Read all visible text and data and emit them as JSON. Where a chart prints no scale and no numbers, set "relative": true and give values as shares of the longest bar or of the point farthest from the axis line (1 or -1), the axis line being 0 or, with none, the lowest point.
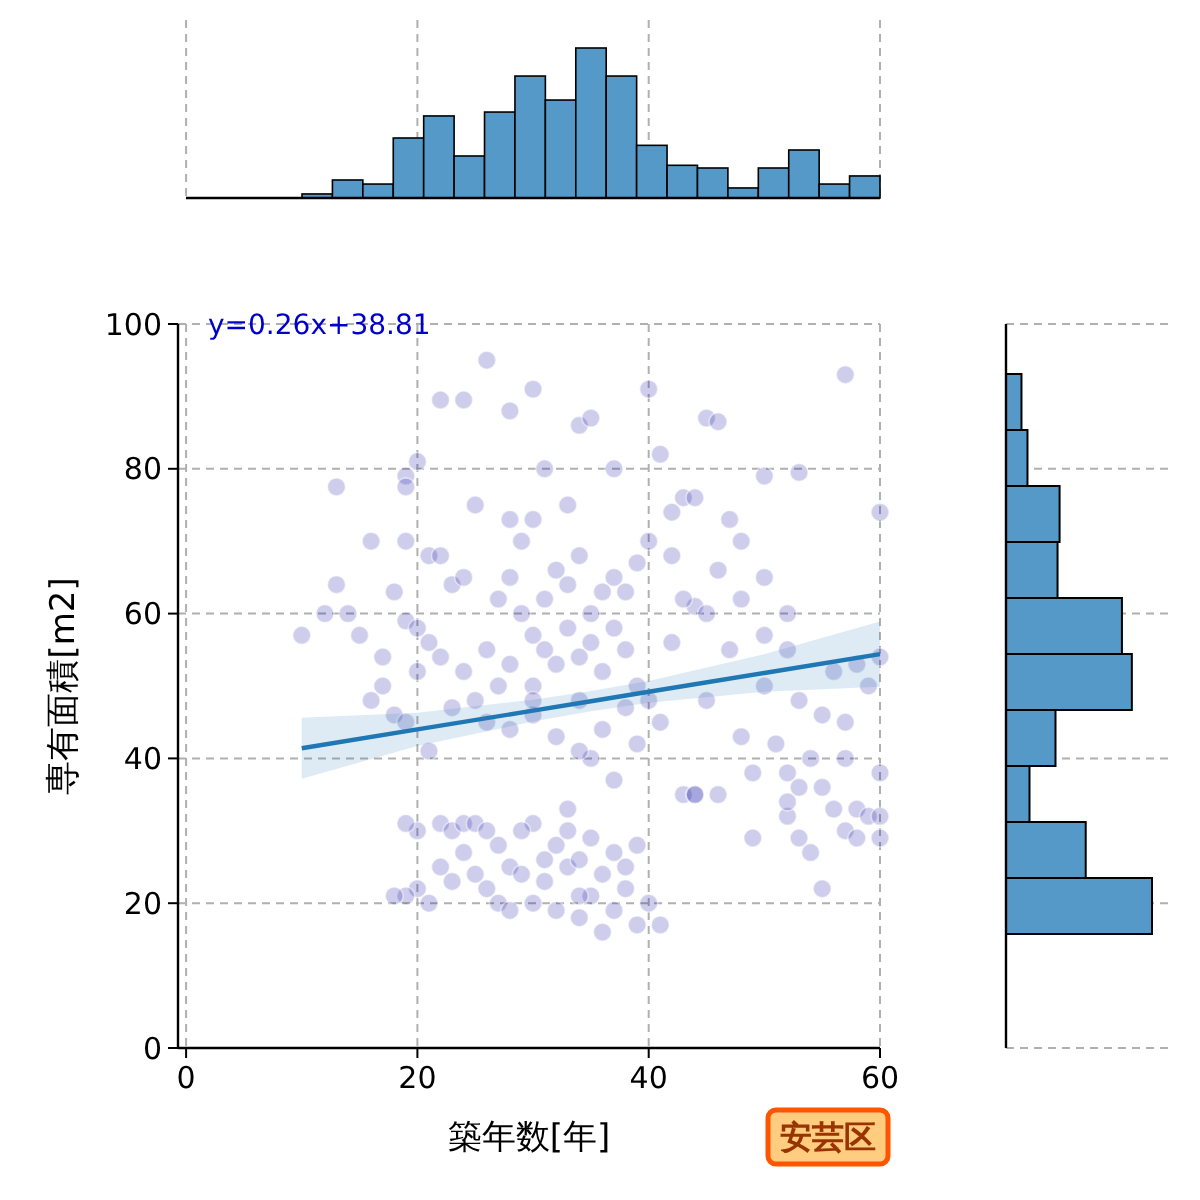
{
  "chart_data": [
    {
      "type": "bar",
      "categories": [
        null,
        null,
        null,
        null,
        null,
        null,
        null,
        null,
        null,
        null,
        null,
        null,
        null,
        null,
        null,
        null,
        null,
        null,
        null
      ],
      "values": [
        0.027,
        0.12,
        0.093,
        0.4,
        0.547,
        0.28,
        0.573,
        0.813,
        0.653,
        1,
        0.813,
        0.351,
        0.218,
        0.2,
        0.067,
        0.2,
        0.32,
        0.093,
        0.147
      ],
      "relative": true,
      "color": "#5499c7"
    },
    {
      "type": "scatter",
      "xlabel": "築年数[年]",
      "ylabel": "専有面積[m2]",
      "xlim": [
        -0.7,
        60
      ],
      "ylim": [
        0,
        100
      ],
      "xticks": [
        0,
        20,
        40,
        60
      ],
      "yticks": [
        0,
        20,
        40,
        60,
        80,
        100
      ],
      "grid": true,
      "annotations": [
        "y=0.26x+38.81",
        "安芸区"
      ],
      "series": [
        {
          "type": "scatter",
          "color": "#2222aa",
          "x": [
            26,
            30,
            22,
            24,
            20,
            19,
            19,
            13,
            28,
            34,
            35,
            45,
            46,
            40,
            57,
            31,
            42,
            43,
            44,
            25,
            28,
            30,
            33,
            37,
            41,
            50,
            53,
            60,
            16,
            19,
            21,
            22,
            23,
            24,
            18,
            19,
            20,
            21,
            22,
            20,
            17,
            17,
            16,
            18,
            19,
            21,
            10,
            12,
            14,
            15,
            13,
            27,
            28,
            29,
            30,
            31,
            32,
            33,
            34,
            35,
            36,
            37,
            38,
            39,
            26,
            28,
            30,
            31,
            33,
            35,
            36,
            37,
            38,
            39,
            40,
            34,
            32,
            29,
            27,
            24,
            25,
            23,
            26,
            28,
            30,
            32,
            34,
            36,
            38,
            40,
            41,
            35,
            37,
            39,
            34,
            30,
            42,
            44,
            45,
            47,
            48,
            50,
            52,
            52,
            50,
            53,
            55,
            56,
            58,
            59,
            60,
            57,
            54,
            51,
            49,
            46,
            43,
            44,
            48,
            52,
            53,
            55,
            58,
            57,
            60,
            45,
            46,
            48,
            50,
            42,
            47,
            43,
            20,
            21,
            19,
            18,
            20,
            19,
            22,
            23,
            24,
            25,
            26,
            27,
            24,
            22,
            23,
            25,
            26,
            27,
            28,
            29,
            30,
            31,
            32,
            33,
            34,
            35,
            36,
            37,
            38,
            39,
            40,
            28,
            30,
            32,
            33,
            34,
            35,
            36,
            37,
            38,
            39,
            41,
            29,
            31,
            33,
            34,
            44,
            49,
            52,
            53,
            55,
            56,
            57,
            58,
            59,
            60,
            52,
            60,
            54
          ],
          "values": [
            95,
            91,
            89.5,
            89.5,
            81,
            79,
            77.5,
            77.5,
            88,
            86,
            87,
            87,
            86.5,
            91,
            93,
            80,
            74,
            76,
            76,
            75,
            73,
            73,
            75,
            80,
            82,
            79,
            79.5,
            74,
            70,
            70,
            68,
            68,
            64,
            65,
            63,
            59,
            58,
            56,
            54,
            52,
            54,
            50,
            48,
            46,
            45,
            41,
            57,
            60,
            60,
            57,
            64,
            62,
            65,
            60,
            57,
            55,
            53,
            58,
            54,
            56,
            52,
            58,
            55,
            50,
            55,
            53,
            50,
            62,
            64,
            60,
            63,
            65,
            63,
            67,
            70,
            68,
            66,
            70,
            50,
            52,
            48,
            47,
            45,
            44,
            46,
            43,
            48,
            44,
            47,
            48,
            45,
            40,
            37,
            42,
            41,
            48,
            56,
            61,
            60,
            55,
            62,
            57,
            60,
            55,
            50,
            48,
            46,
            52,
            53,
            50,
            54,
            45,
            40,
            42,
            38,
            35,
            35,
            35,
            43,
            38,
            36,
            36,
            33,
            40,
            38,
            48,
            66,
            70,
            65,
            68,
            73,
            62,
            22,
            20,
            21,
            21,
            30,
            31,
            31,
            30,
            31,
            31,
            30,
            28,
            27,
            25,
            23,
            24,
            22,
            20,
            25,
            24,
            20,
            23,
            19,
            25,
            18,
            21,
            16,
            19,
            22,
            17,
            20,
            19,
            31,
            28,
            30,
            26,
            29,
            24,
            27,
            25,
            28,
            17,
            30,
            26,
            33,
            21,
            35,
            29,
            32,
            29,
            22,
            33,
            30,
            29,
            32,
            32,
            34,
            29,
            27
          ]
        },
        {
          "type": "line",
          "color": "#1f77b4",
          "x": [
            10,
            20,
            30,
            35,
            40,
            50,
            60
          ],
          "values": [
            41.4,
            44.0,
            46.6,
            47.9,
            49.2,
            51.8,
            54.4
          ],
          "lower": [
            37.2,
            41.7,
            45.1,
            46.5,
            47.7,
            49.2,
            49.9
          ],
          "upper": [
            45.6,
            46.3,
            48.1,
            49.3,
            50.7,
            54.4,
            58.9
          ]
        }
      ]
    },
    {
      "type": "bar",
      "orientation": "horizontal",
      "categories": [
        null,
        null,
        null,
        null,
        null,
        null,
        null,
        null,
        null,
        null
      ],
      "values": [
        0.106,
        0.147,
        0.367,
        0.353,
        0.794,
        0.862,
        0.339,
        0.161,
        0.546,
        1
      ],
      "relative": true,
      "color": "#5499c7"
    }
  ]
}
